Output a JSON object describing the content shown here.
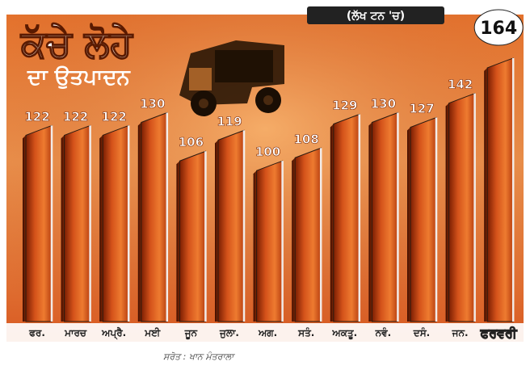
{
  "title": "ਕੱਚੇ ਲੋਹੇ",
  "subtitle": "ਦਾ ਉਤਪਾਦਨ",
  "unit": "(ਲੱਖ ਟਨ 'ਚ)",
  "source": "ਸਰੋਤ : ਖਾਨ ਮੰਤਰਾਲਾ",
  "chart_data": {
    "type": "bar",
    "categories": [
      "ਫਰ.",
      "ਮਾਰਚ",
      "ਅਪ੍ਰੈ.",
      "ਮਈ",
      "ਜੂਨ",
      "ਜੁਲਾ.",
      "ਅਗ.",
      "ਸਤੰ.",
      "ਅਕਤੂ.",
      "ਨਵੰ.",
      "ਦਸੰ.",
      "ਜਨ.",
      "ਫਰਵਰੀ"
    ],
    "values": [
      122,
      122,
      122,
      130,
      106,
      119,
      100,
      108,
      129,
      130,
      127,
      142,
      164
    ],
    "value_labels": [
      "122",
      "122",
      "122",
      "130",
      "106",
      "119",
      "100",
      "108",
      "129",
      "130",
      "127",
      "142",
      "164"
    ],
    "highlight_index": 12,
    "title": "ਕੱਚੇ ਲੋਹੇ ਦਾ ਉਤਪਾਦਨ",
    "xlabel": "",
    "ylabel": "",
    "ylim": [
      0,
      170
    ],
    "grid": false,
    "legend": "none",
    "colors": {
      "background_light": "#f4a160",
      "background_dark": "#c8481a",
      "bar_face": "#d9561c",
      "bar_dark": "#5a1200",
      "bar_edge": "#2a1a10",
      "header_bar": "#222222",
      "highlight_circle": "#ffffff"
    }
  }
}
